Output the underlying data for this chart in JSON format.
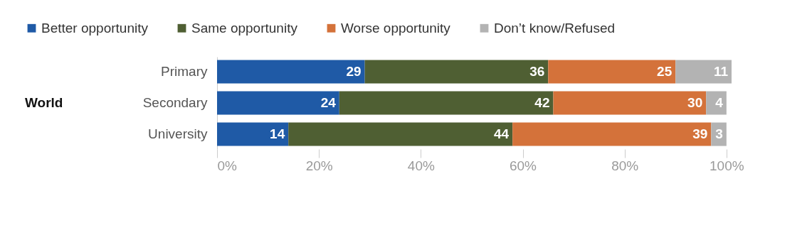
{
  "chart_data": {
    "type": "bar",
    "orientation": "horizontal",
    "stacked": true,
    "annotations": [
      "World"
    ],
    "categories": [
      "Primary",
      "Secondary",
      "University"
    ],
    "series": [
      {
        "name": "Better opportunity",
        "color": "#1f5aa6",
        "values": [
          29,
          24,
          14
        ]
      },
      {
        "name": "Same opportunity",
        "color": "#4f5f33",
        "values": [
          36,
          42,
          44
        ]
      },
      {
        "name": "Worse opportunity",
        "color": "#d4723a",
        "values": [
          25,
          30,
          39
        ]
      },
      {
        "name": "Don’t know/Refused",
        "color": "#b3b3b3",
        "values": [
          11,
          4,
          3
        ]
      }
    ],
    "xlim": [
      0,
      101
    ],
    "xticks": [
      {
        "value": 0,
        "label": "0%"
      },
      {
        "value": 20,
        "label": "20%"
      },
      {
        "value": 40,
        "label": "40%"
      },
      {
        "value": 60,
        "label": "60%"
      },
      {
        "value": 80,
        "label": "80%"
      },
      {
        "value": 100,
        "label": "100%"
      }
    ],
    "data_labels": true,
    "legend": "top",
    "grid": false
  }
}
